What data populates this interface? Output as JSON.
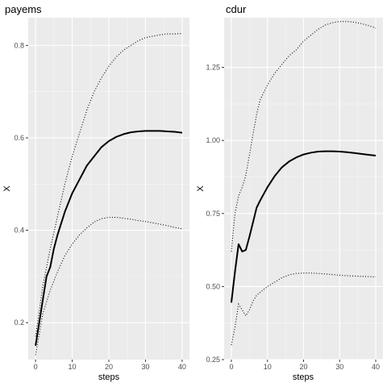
{
  "chart_data": [
    {
      "type": "line",
      "title": "payems",
      "xlabel": "steps",
      "ylabel": "X",
      "xlim": [
        -2,
        42
      ],
      "ylim": [
        0.12,
        0.86
      ],
      "xticks": [
        0,
        10,
        20,
        30,
        40
      ],
      "yticks": [
        0.2,
        0.4,
        0.6,
        0.8
      ],
      "ytick_labels": [
        "0.2",
        "0.4",
        "0.6",
        "0.8"
      ],
      "grid": true,
      "series": [
        {
          "role": "irf",
          "x": [
            0,
            2,
            3,
            4,
            5,
            6,
            8,
            10,
            12,
            14,
            16,
            18,
            20,
            22,
            24,
            26,
            28,
            30,
            32,
            34,
            36,
            38,
            40
          ],
          "values": [
            0.15,
            0.25,
            0.3,
            0.32,
            0.36,
            0.39,
            0.44,
            0.48,
            0.51,
            0.54,
            0.56,
            0.58,
            0.593,
            0.602,
            0.608,
            0.612,
            0.614,
            0.615,
            0.615,
            0.615,
            0.614,
            0.613,
            0.611
          ]
        },
        {
          "role": "upper",
          "x": [
            0,
            2,
            4,
            6,
            8,
            10,
            12,
            14,
            16,
            18,
            20,
            22,
            24,
            26,
            28,
            30,
            32,
            34,
            36,
            38,
            40
          ],
          "values": [
            0.17,
            0.28,
            0.36,
            0.43,
            0.5,
            0.56,
            0.61,
            0.66,
            0.7,
            0.73,
            0.755,
            0.775,
            0.79,
            0.8,
            0.81,
            0.817,
            0.82,
            0.823,
            0.825,
            0.825,
            0.826
          ]
        },
        {
          "role": "lower",
          "x": [
            0,
            2,
            4,
            6,
            8,
            10,
            12,
            14,
            16,
            18,
            20,
            22,
            24,
            26,
            28,
            30,
            32,
            34,
            36,
            38,
            40
          ],
          "values": [
            0.13,
            0.22,
            0.27,
            0.31,
            0.345,
            0.37,
            0.39,
            0.405,
            0.418,
            0.425,
            0.428,
            0.428,
            0.426,
            0.424,
            0.421,
            0.419,
            0.416,
            0.413,
            0.41,
            0.406,
            0.403
          ]
        }
      ]
    },
    {
      "type": "line",
      "title": "cdur",
      "xlabel": "steps",
      "ylabel": "X",
      "xlim": [
        -2,
        42
      ],
      "ylim": [
        0.25,
        1.42
      ],
      "xticks": [
        0,
        10,
        20,
        30,
        40
      ],
      "yticks": [
        0.25,
        0.5,
        0.75,
        1.0,
        1.25
      ],
      "ytick_labels": [
        "0.25",
        "0.50",
        "0.75",
        "1.00",
        "1.25"
      ],
      "grid": true,
      "series": [
        {
          "role": "irf",
          "x": [
            0,
            1,
            2,
            3,
            4,
            5,
            6,
            7,
            8,
            10,
            12,
            14,
            16,
            18,
            20,
            22,
            24,
            26,
            28,
            30,
            32,
            34,
            36,
            38,
            40
          ],
          "values": [
            0.445,
            0.55,
            0.645,
            0.62,
            0.625,
            0.67,
            0.72,
            0.77,
            0.795,
            0.84,
            0.878,
            0.908,
            0.928,
            0.942,
            0.952,
            0.958,
            0.962,
            0.963,
            0.963,
            0.962,
            0.96,
            0.957,
            0.954,
            0.951,
            0.948
          ]
        },
        {
          "role": "upper",
          "x": [
            0,
            1,
            2,
            3,
            4,
            5,
            6,
            7,
            8,
            10,
            12,
            14,
            16,
            18,
            20,
            22,
            24,
            26,
            28,
            30,
            32,
            34,
            36,
            38,
            40
          ],
          "values": [
            0.62,
            0.75,
            0.81,
            0.84,
            0.88,
            0.95,
            1.02,
            1.09,
            1.14,
            1.19,
            1.23,
            1.26,
            1.29,
            1.31,
            1.34,
            1.36,
            1.38,
            1.395,
            1.403,
            1.407,
            1.407,
            1.405,
            1.4,
            1.393,
            1.385
          ]
        },
        {
          "role": "lower",
          "x": [
            0,
            1,
            2,
            3,
            4,
            5,
            6,
            7,
            8,
            10,
            12,
            14,
            16,
            18,
            20,
            22,
            24,
            26,
            28,
            30,
            32,
            34,
            36,
            38,
            40
          ],
          "values": [
            0.3,
            0.36,
            0.44,
            0.42,
            0.4,
            0.42,
            0.45,
            0.47,
            0.48,
            0.5,
            0.515,
            0.53,
            0.54,
            0.545,
            0.546,
            0.546,
            0.545,
            0.543,
            0.541,
            0.539,
            0.537,
            0.536,
            0.535,
            0.534,
            0.533
          ]
        }
      ]
    }
  ]
}
